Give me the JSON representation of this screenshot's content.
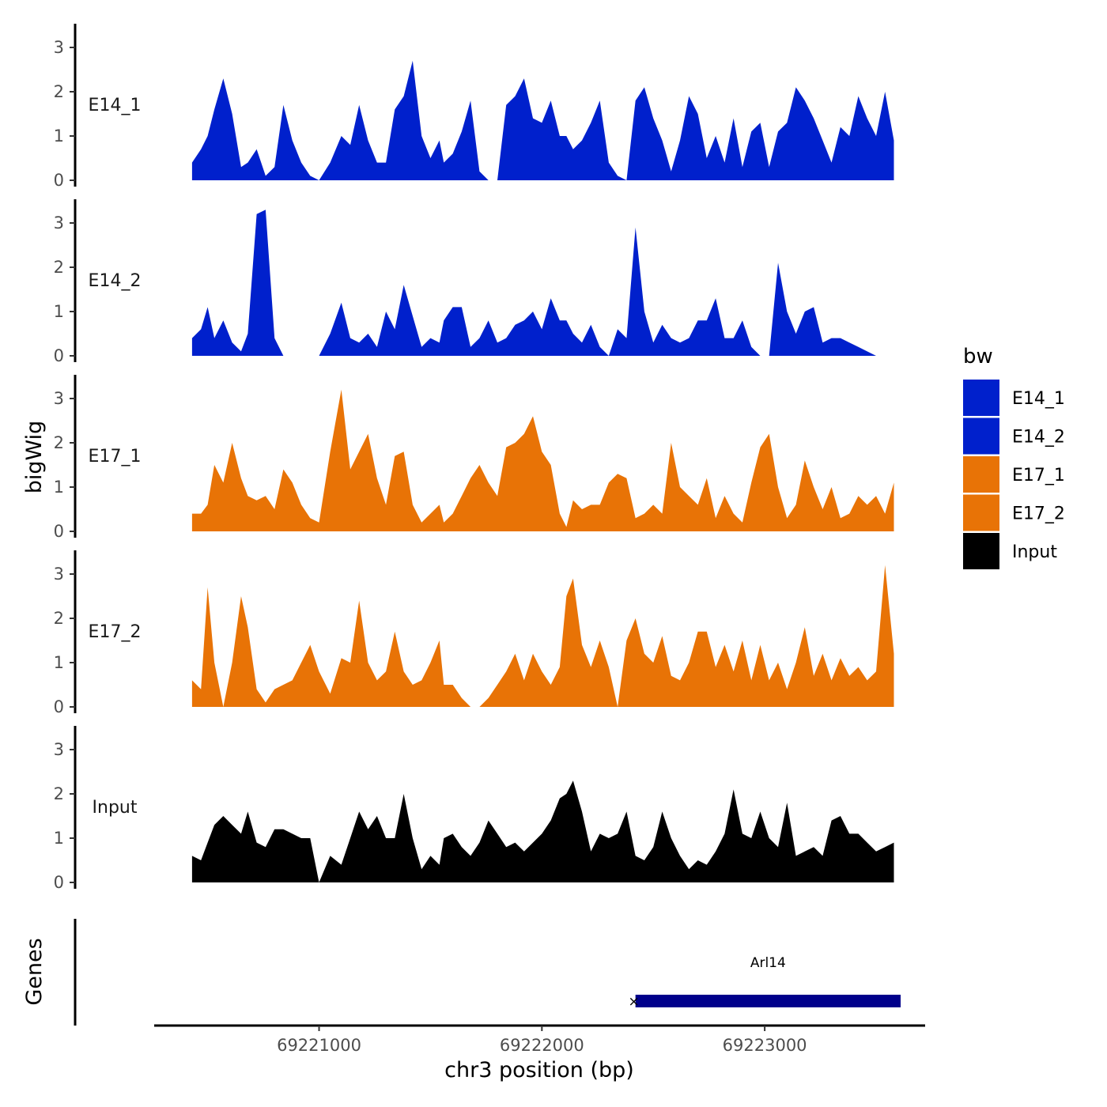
{
  "chart_data": {
    "type": "area",
    "chromosome": "chr3",
    "xlabel": "chr3 position (bp)",
    "ylabel": "bigWig",
    "genes_label": "Genes",
    "xlim": [
      69220260,
      69223720
    ],
    "ylim": [
      0,
      3.5
    ],
    "x_ticks": [
      69221000,
      69222000,
      69223000
    ],
    "x_tick_labels": [
      "69221000",
      "69222000",
      "69223000"
    ],
    "y_ticks": [
      0,
      1,
      2,
      3
    ],
    "y_tick_labels": [
      "0",
      "1",
      "2",
      "3"
    ],
    "legend": {
      "title": "bw",
      "entries": [
        {
          "label": "E14_1",
          "color": "#0020CC"
        },
        {
          "label": "E14_2",
          "color": "#0020CC"
        },
        {
          "label": "E17_1",
          "color": "#E87306"
        },
        {
          "label": "E17_2",
          "color": "#E87306"
        },
        {
          "label": "Input",
          "color": "#000000"
        }
      ]
    },
    "series": [
      {
        "name": "E14_1",
        "label": "E14_1",
        "color": "#0020CC",
        "x": [
          69220430,
          69220470,
          69220500,
          69220530,
          69220570,
          69220610,
          69220650,
          69220680,
          69220720,
          69220760,
          69220800,
          69220840,
          69220880,
          69220920,
          69220960,
          69221000,
          69221050,
          69221100,
          69221140,
          69221180,
          69221220,
          69221260,
          69221300,
          69221340,
          69221380,
          69221420,
          69221460,
          69221500,
          69221540,
          69221560,
          69221600,
          69221640,
          69221680,
          69221720,
          69221760,
          69221800,
          69221840,
          69221880,
          69221920,
          69221960,
          69222000,
          69222040,
          69222080,
          69222110,
          69222140,
          69222180,
          69222220,
          69222260,
          69222300,
          69222340,
          69222380,
          69222420,
          69222460,
          69222500,
          69222540,
          69222580,
          69222620,
          69222660,
          69222700,
          69222740,
          69222780,
          69222820,
          69222860,
          69222900,
          69222940,
          69222980,
          69223020,
          69223060,
          69223100,
          69223140,
          69223180,
          69223220,
          69223260,
          69223300,
          69223340,
          69223380,
          69223420,
          69223460,
          69223500,
          69223540,
          69223580
        ],
        "y": [
          0.4,
          0.7,
          1.0,
          1.6,
          2.3,
          1.5,
          0.3,
          0.4,
          0.7,
          0.1,
          0.3,
          1.7,
          0.9,
          0.4,
          0.1,
          0.0,
          0.4,
          1.0,
          0.8,
          1.7,
          0.9,
          0.4,
          0.4,
          1.6,
          1.9,
          2.7,
          1.0,
          0.5,
          0.9,
          0.4,
          0.6,
          1.1,
          1.8,
          0.2,
          0.0,
          0.0,
          1.7,
          1.9,
          2.3,
          1.4,
          1.3,
          1.8,
          1.0,
          1.0,
          0.7,
          0.9,
          1.3,
          1.8,
          0.4,
          0.1,
          0.0,
          1.8,
          2.1,
          1.4,
          0.9,
          0.2,
          0.9,
          1.9,
          1.5,
          0.5,
          1.0,
          0.4,
          1.4,
          0.3,
          1.1,
          1.3,
          0.3,
          1.1,
          1.3,
          2.1,
          1.8,
          1.4,
          0.9,
          0.4,
          1.2,
          1.0,
          1.9,
          1.4,
          1.0,
          2.0,
          0.9
        ]
      },
      {
        "name": "E14_2",
        "label": "E14_2",
        "color": "#0020CC",
        "x": [
          69220430,
          69220470,
          69220500,
          69220530,
          69220570,
          69220610,
          69220650,
          69220680,
          69220720,
          69220760,
          69220800,
          69220840,
          69220880,
          69220920,
          69220960,
          69221000,
          69221050,
          69221100,
          69221140,
          69221180,
          69221220,
          69221260,
          69221300,
          69221340,
          69221380,
          69221420,
          69221460,
          69221500,
          69221540,
          69221560,
          69221600,
          69221640,
          69221680,
          69221720,
          69221760,
          69221800,
          69221840,
          69221880,
          69221920,
          69221960,
          69222000,
          69222040,
          69222080,
          69222110,
          69222140,
          69222180,
          69222220,
          69222260,
          69222300,
          69222340,
          69222380,
          69222420,
          69222460,
          69222500,
          69222540,
          69222580,
          69222620,
          69222660,
          69222700,
          69222740,
          69222780,
          69222820,
          69222860,
          69222900,
          69222940,
          69222980,
          69223020,
          69223060,
          69223100,
          69223140,
          69223180,
          69223220,
          69223260,
          69223300,
          69223340,
          69223380,
          69223420,
          69223460,
          69223500,
          69223540,
          69223580
        ],
        "y": [
          0.4,
          0.6,
          1.1,
          0.4,
          0.8,
          0.3,
          0.1,
          0.5,
          3.2,
          3.3,
          0.4,
          0.0,
          0.0,
          0.0,
          0.0,
          0.0,
          0.5,
          1.2,
          0.4,
          0.3,
          0.5,
          0.2,
          1.0,
          0.6,
          1.6,
          0.9,
          0.2,
          0.4,
          0.3,
          0.8,
          1.1,
          1.1,
          0.2,
          0.4,
          0.8,
          0.3,
          0.4,
          0.7,
          0.8,
          1.0,
          0.6,
          1.3,
          0.8,
          0.8,
          0.5,
          0.3,
          0.7,
          0.2,
          0.0,
          0.6,
          0.4,
          2.9,
          1.0,
          0.3,
          0.7,
          0.4,
          0.3,
          0.4,
          0.8,
          0.8,
          1.3,
          0.4,
          0.4,
          0.8,
          0.2,
          0.0,
          0.0,
          2.1,
          1.0,
          0.5,
          1.0,
          1.1,
          0.3,
          0.4,
          0.4,
          0.3,
          0.2,
          0.1,
          0.0,
          0.0,
          0.0
        ]
      },
      {
        "name": "E17_1",
        "label": "E17_1",
        "color": "#E87306",
        "x": [
          69220430,
          69220470,
          69220500,
          69220530,
          69220570,
          69220610,
          69220650,
          69220680,
          69220720,
          69220760,
          69220800,
          69220840,
          69220880,
          69220920,
          69220960,
          69221000,
          69221050,
          69221100,
          69221140,
          69221180,
          69221220,
          69221260,
          69221300,
          69221340,
          69221380,
          69221420,
          69221460,
          69221500,
          69221540,
          69221560,
          69221600,
          69221640,
          69221680,
          69221720,
          69221760,
          69221800,
          69221840,
          69221880,
          69221920,
          69221960,
          69222000,
          69222040,
          69222080,
          69222110,
          69222140,
          69222180,
          69222220,
          69222260,
          69222300,
          69222340,
          69222380,
          69222420,
          69222460,
          69222500,
          69222540,
          69222580,
          69222620,
          69222660,
          69222700,
          69222740,
          69222780,
          69222820,
          69222860,
          69222900,
          69222940,
          69222980,
          69223020,
          69223060,
          69223100,
          69223140,
          69223180,
          69223220,
          69223260,
          69223300,
          69223340,
          69223380,
          69223420,
          69223460,
          69223500,
          69223540,
          69223580
        ],
        "y": [
          0.4,
          0.4,
          0.6,
          1.5,
          1.1,
          2.0,
          1.2,
          0.8,
          0.7,
          0.8,
          0.5,
          1.4,
          1.1,
          0.6,
          0.3,
          0.2,
          1.8,
          3.2,
          1.4,
          1.8,
          2.2,
          1.2,
          0.6,
          1.7,
          1.8,
          0.6,
          0.2,
          0.4,
          0.6,
          0.2,
          0.4,
          0.8,
          1.2,
          1.5,
          1.1,
          0.8,
          1.9,
          2.0,
          2.2,
          2.6,
          1.8,
          1.5,
          0.4,
          0.1,
          0.7,
          0.5,
          0.6,
          0.6,
          1.1,
          1.3,
          1.2,
          0.3,
          0.4,
          0.6,
          0.4,
          2.0,
          1.0,
          0.8,
          0.6,
          1.2,
          0.3,
          0.8,
          0.4,
          0.2,
          1.1,
          1.9,
          2.2,
          1.0,
          0.3,
          0.6,
          1.6,
          1.0,
          0.5,
          1.0,
          0.3,
          0.4,
          0.8,
          0.6,
          0.8,
          0.4,
          1.1
        ]
      },
      {
        "name": "E17_2",
        "label": "E17_2",
        "color": "#E87306",
        "x": [
          69220430,
          69220470,
          69220500,
          69220530,
          69220570,
          69220610,
          69220650,
          69220680,
          69220720,
          69220760,
          69220800,
          69220840,
          69220880,
          69220920,
          69220960,
          69221000,
          69221050,
          69221100,
          69221140,
          69221180,
          69221220,
          69221260,
          69221300,
          69221340,
          69221380,
          69221420,
          69221460,
          69221500,
          69221540,
          69221560,
          69221600,
          69221640,
          69221680,
          69221720,
          69221760,
          69221800,
          69221840,
          69221880,
          69221920,
          69221960,
          69222000,
          69222040,
          69222080,
          69222110,
          69222140,
          69222180,
          69222220,
          69222260,
          69222300,
          69222340,
          69222380,
          69222420,
          69222460,
          69222500,
          69222540,
          69222580,
          69222620,
          69222660,
          69222700,
          69222740,
          69222780,
          69222820,
          69222860,
          69222900,
          69222940,
          69222980,
          69223020,
          69223060,
          69223100,
          69223140,
          69223180,
          69223220,
          69223260,
          69223300,
          69223340,
          69223380,
          69223420,
          69223460,
          69223500,
          69223540,
          69223580
        ],
        "y": [
          0.6,
          0.4,
          2.7,
          1.0,
          0.0,
          1.0,
          2.5,
          1.8,
          0.4,
          0.1,
          0.4,
          0.5,
          0.6,
          1.0,
          1.4,
          0.8,
          0.3,
          1.1,
          1.0,
          2.4,
          1.0,
          0.6,
          0.8,
          1.7,
          0.8,
          0.5,
          0.6,
          1.0,
          1.5,
          0.5,
          0.5,
          0.2,
          0.0,
          0.0,
          0.2,
          0.5,
          0.8,
          1.2,
          0.6,
          1.2,
          0.8,
          0.5,
          0.9,
          2.5,
          2.9,
          1.4,
          0.9,
          1.5,
          0.9,
          0.0,
          1.5,
          2.0,
          1.2,
          1.0,
          1.6,
          0.7,
          0.6,
          1.0,
          1.7,
          1.7,
          0.9,
          1.4,
          0.8,
          1.5,
          0.6,
          1.4,
          0.6,
          1.0,
          0.4,
          1.0,
          1.8,
          0.7,
          1.2,
          0.6,
          1.1,
          0.7,
          0.9,
          0.6,
          0.8,
          3.2,
          1.2
        ]
      },
      {
        "name": "Input",
        "label": "Input",
        "color": "#000000",
        "x": [
          69220430,
          69220470,
          69220500,
          69220530,
          69220570,
          69220610,
          69220650,
          69220680,
          69220720,
          69220760,
          69220800,
          69220840,
          69220880,
          69220920,
          69220960,
          69221000,
          69221050,
          69221100,
          69221140,
          69221180,
          69221220,
          69221260,
          69221300,
          69221340,
          69221380,
          69221420,
          69221460,
          69221500,
          69221540,
          69221560,
          69221600,
          69221640,
          69221680,
          69221720,
          69221760,
          69221800,
          69221840,
          69221880,
          69221920,
          69221960,
          69222000,
          69222040,
          69222080,
          69222110,
          69222140,
          69222180,
          69222220,
          69222260,
          69222300,
          69222340,
          69222380,
          69222420,
          69222460,
          69222500,
          69222540,
          69222580,
          69222620,
          69222660,
          69222700,
          69222740,
          69222780,
          69222820,
          69222860,
          69222900,
          69222940,
          69222980,
          69223020,
          69223060,
          69223100,
          69223140,
          69223180,
          69223220,
          69223260,
          69223300,
          69223340,
          69223380,
          69223420,
          69223460,
          69223500,
          69223540,
          69223580
        ],
        "y": [
          0.6,
          0.5,
          0.9,
          1.3,
          1.5,
          1.3,
          1.1,
          1.6,
          0.9,
          0.8,
          1.2,
          1.2,
          1.1,
          1.0,
          1.0,
          0.0,
          0.6,
          0.4,
          1.0,
          1.6,
          1.2,
          1.5,
          1.0,
          1.0,
          2.0,
          1.0,
          0.3,
          0.6,
          0.4,
          1.0,
          1.1,
          0.8,
          0.6,
          0.9,
          1.4,
          1.1,
          0.8,
          0.9,
          0.7,
          0.9,
          1.1,
          1.4,
          1.9,
          2.0,
          2.3,
          1.6,
          0.7,
          1.1,
          1.0,
          1.1,
          1.6,
          0.6,
          0.5,
          0.8,
          1.6,
          1.0,
          0.6,
          0.3,
          0.5,
          0.4,
          0.7,
          1.1,
          2.1,
          1.1,
          1.0,
          1.6,
          1.0,
          0.8,
          1.8,
          0.6,
          0.7,
          0.8,
          0.6,
          1.4,
          1.5,
          1.1,
          1.1,
          0.9,
          0.7,
          0.8,
          0.9
        ]
      }
    ],
    "genes": [
      {
        "name": "Arl14",
        "start": 69222420,
        "end": 69223610,
        "strand": "+"
      }
    ]
  }
}
